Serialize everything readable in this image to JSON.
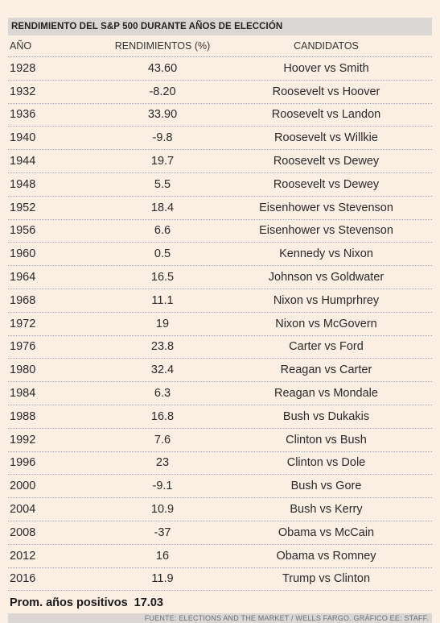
{
  "chart_data": {
    "type": "table",
    "title": "RENDIMIENTO DEL S&P 500 DURANTE AÑOS DE ELECCIÓN",
    "columns": [
      "AÑO",
      "RENDIMIENTOS (%)",
      "CANDIDATOS"
    ],
    "rows": [
      {
        "year": "1928",
        "value": "43.60",
        "candidates": "Hoover vs Smith"
      },
      {
        "year": "1932",
        "value": "-8.20",
        "candidates": "Roosevelt vs Hoover"
      },
      {
        "year": "1936",
        "value": "33.90",
        "candidates": "Roosevelt vs Landon"
      },
      {
        "year": "1940",
        "value": "-9.8",
        "candidates": "Roosevelt vs Willkie"
      },
      {
        "year": "1944",
        "value": "19.7",
        "candidates": "Roosevelt vs Dewey"
      },
      {
        "year": "1948",
        "value": "5.5",
        "candidates": "Roosevelt vs Dewey"
      },
      {
        "year": "1952",
        "value": "18.4",
        "candidates": "Eisenhower vs Stevenson"
      },
      {
        "year": "1956",
        "value": "6.6",
        "candidates": "Eisenhower vs Stevenson"
      },
      {
        "year": "1960",
        "value": "0.5",
        "candidates": "Kennedy vs Nixon"
      },
      {
        "year": "1964",
        "value": "16.5",
        "candidates": "Johnson vs Goldwater"
      },
      {
        "year": "1968",
        "value": "11.1",
        "candidates": "Nixon vs Humprhrey"
      },
      {
        "year": "1972",
        "value": "19",
        "candidates": "Nixon vs McGovern"
      },
      {
        "year": "1976",
        "value": "23.8",
        "candidates": "Carter vs Ford"
      },
      {
        "year": "1980",
        "value": "32.4",
        "candidates": "Reagan vs Carter"
      },
      {
        "year": "1984",
        "value": "6.3",
        "candidates": "Reagan vs Mondale"
      },
      {
        "year": "1988",
        "value": "16.8",
        "candidates": "Bush vs Dukakis"
      },
      {
        "year": "1992",
        "value": "7.6",
        "candidates": "Clinton vs Bush"
      },
      {
        "year": "1996",
        "value": "23",
        "candidates": "Clinton vs Dole"
      },
      {
        "year": "2000",
        "value": "-9.1",
        "candidates": "Bush vs Gore"
      },
      {
        "year": "2004",
        "value": "10.9",
        "candidates": "Bush vs Kerry"
      },
      {
        "year": "2008",
        "value": "-37",
        "candidates": "Obama vs McCain"
      },
      {
        "year": "2012",
        "value": "16",
        "candidates": "Obama vs Romney"
      },
      {
        "year": "2016",
        "value": "11.9",
        "candidates": "Trump vs Clinton"
      }
    ],
    "average_label": "Prom. años positivos",
    "average_value": "17.03",
    "source": "FUENTE: ELECTIONS AND THE MARKET / WELLS FARGO. GRÁFICO EE: STAFF."
  },
  "colors": {
    "background": "#fbeee3",
    "bar": "#d9d6d4",
    "text": "#2a2a2a"
  }
}
